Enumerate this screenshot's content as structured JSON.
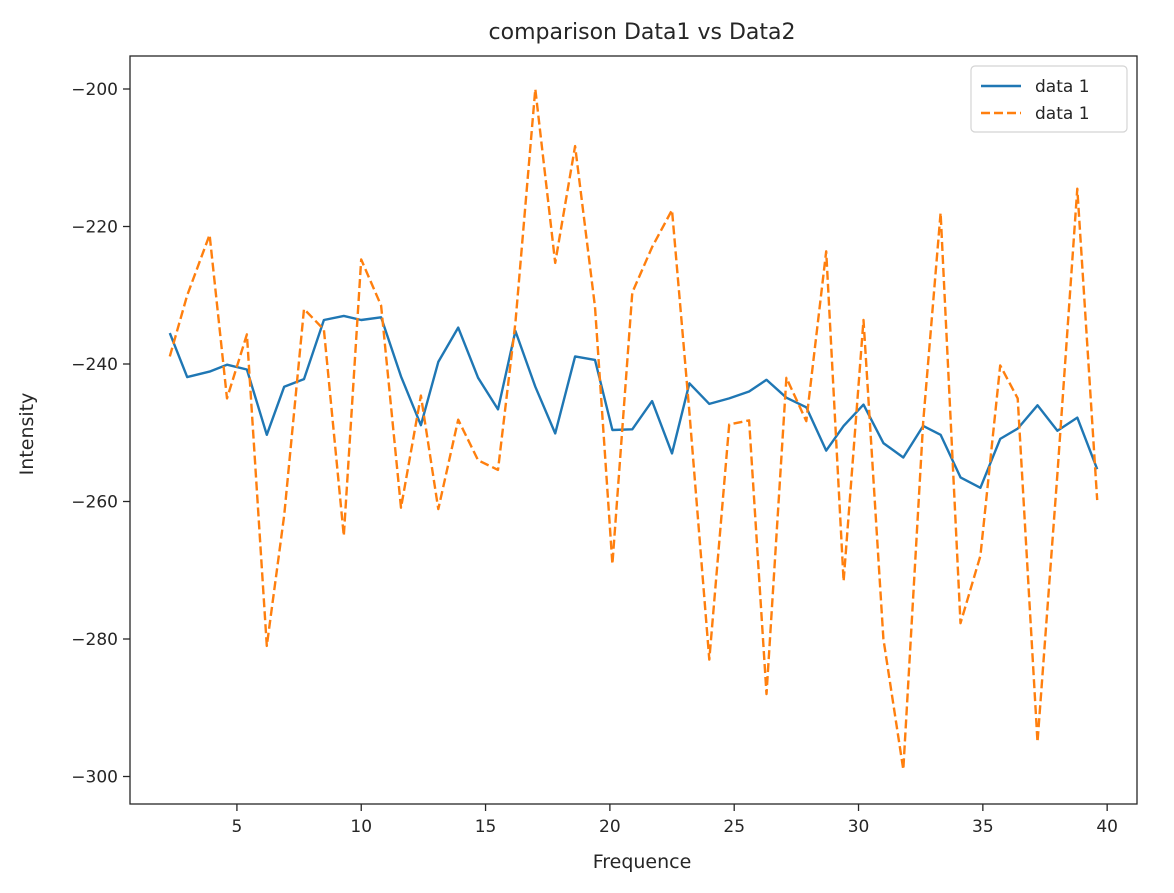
{
  "chart_data": {
    "type": "line",
    "title": "comparison Data1 vs Data2",
    "xlabel": "Frequence",
    "ylabel": "Intensity",
    "xlim": [
      0.7,
      41.2
    ],
    "ylim": [
      -304,
      -195.2
    ],
    "x_ticks": [
      5,
      10,
      15,
      20,
      25,
      30,
      35,
      40
    ],
    "x_tick_labels": [
      "5",
      "10",
      "15",
      "20",
      "25",
      "30",
      "35",
      "40"
    ],
    "y_ticks": [
      -200,
      -220,
      -240,
      -260,
      -280,
      -300
    ],
    "y_tick_labels": [
      "−200",
      "−220",
      "−240",
      "−260",
      "−280",
      "−300"
    ],
    "grid": false,
    "legend_position": "top-right",
    "series": [
      {
        "name": "data 1",
        "color": "#1f77b4",
        "style": "solid",
        "x": [
          2.3,
          3.0,
          3.9,
          4.6,
          5.4,
          6.2,
          6.9,
          7.7,
          8.5,
          9.3,
          10.0,
          10.8,
          11.6,
          12.4,
          13.1,
          13.9,
          14.7,
          15.5,
          16.2,
          17.0,
          17.8,
          18.6,
          19.4,
          20.1,
          20.9,
          21.7,
          22.5,
          23.2,
          24.0,
          24.8,
          25.6,
          26.3,
          27.1,
          27.9,
          28.7,
          29.4,
          30.2,
          31.0,
          31.8,
          32.6,
          33.3,
          34.1,
          34.9,
          35.7,
          36.4,
          37.2,
          38.0,
          38.8,
          39.6
        ],
        "values": [
          -235.5,
          -241.9,
          -241.1,
          -240.1,
          -240.8,
          -250.3,
          -243.3,
          -242.2,
          -233.6,
          -233.0,
          -233.6,
          -233.2,
          -241.8,
          -248.9,
          -239.7,
          -234.7,
          -242.0,
          -246.6,
          -235.2,
          -243.3,
          -250.1,
          -238.9,
          -239.4,
          -249.6,
          -249.5,
          -245.4,
          -253.0,
          -242.8,
          -245.8,
          -245.0,
          -244.0,
          -242.3,
          -244.9,
          -246.3,
          -252.6,
          -249.0,
          -245.9,
          -251.5,
          -253.6,
          -249.0,
          -250.3,
          -256.5,
          -258.0,
          -250.9,
          -249.4,
          -246.0,
          -249.7,
          -247.8,
          -255.3
        ]
      },
      {
        "name": "data 1",
        "color": "#ff7f0e",
        "style": "dashed",
        "x": [
          2.3,
          3.0,
          3.9,
          4.6,
          5.4,
          6.2,
          6.9,
          7.7,
          8.5,
          9.3,
          10.0,
          10.8,
          11.6,
          12.4,
          13.1,
          13.9,
          14.7,
          15.5,
          16.2,
          17.0,
          17.8,
          18.6,
          19.4,
          20.1,
          20.9,
          21.7,
          22.5,
          23.2,
          24.0,
          24.8,
          25.6,
          26.3,
          27.1,
          27.9,
          28.7,
          29.4,
          30.2,
          31.0,
          31.8,
          32.6,
          33.3,
          34.1,
          34.9,
          35.7,
          36.4,
          37.2,
          38.0,
          38.8,
          39.6
        ],
        "values": [
          -238.9,
          -230.0,
          -221.2,
          -245.0,
          -235.7,
          -281.0,
          -262.0,
          -232.0,
          -235.0,
          -265.0,
          -224.8,
          -231.5,
          -260.9,
          -244.6,
          -261.1,
          -248.1,
          -254.0,
          -255.4,
          -234.0,
          -200.0,
          -225.3,
          -208.3,
          -231.7,
          -269.1,
          -229.6,
          -223.0,
          -217.6,
          -247.0,
          -283.0,
          -248.8,
          -248.2,
          -288.0,
          -242.0,
          -248.3,
          -223.6,
          -271.6,
          -233.6,
          -280.0,
          -299.0,
          -248.4,
          -218.0,
          -277.7,
          -267.9,
          -240.2,
          -245.0,
          -295.0,
          -256.0,
          -214.5,
          -259.8
        ]
      }
    ]
  }
}
